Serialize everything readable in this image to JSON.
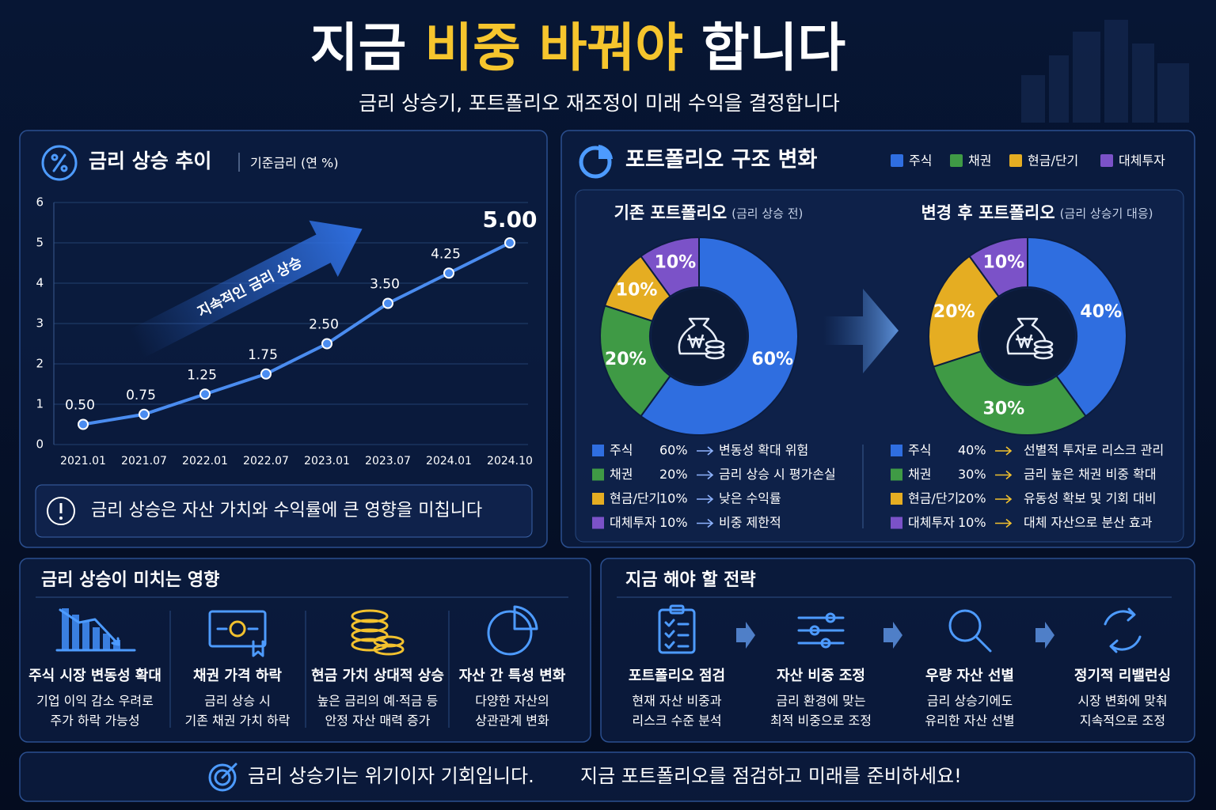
{
  "header": {
    "title_start": "지금",
    "title_highlight": "비중 바꿔야",
    "title_end": "합니다",
    "subtitle": "금리 상승기, 포트폴리오 재조정이 미래 수익을 결정합니다"
  },
  "rate_panel": {
    "title": "금리 상승 추이",
    "subtitle": "기준금리 (연 %)",
    "note": "금리 상승은 자산 가치와 수익률에 큰 영향을 미칩니다"
  },
  "portfolio_panel": {
    "title": "포트폴리오 구조 변화"
  },
  "chart_data": [
    {
      "type": "line",
      "categories": [
        "2021.01",
        "2021.07",
        "2022.01",
        "2022.07",
        "2023.01",
        "2023.07",
        "2024.01",
        "2024.10"
      ],
      "values": [
        0.5,
        0.75,
        1.25,
        1.75,
        2.5,
        3.5,
        4.25,
        5.0
      ],
      "value_labels": [
        "0.50",
        "0.75",
        "1.25",
        "1.75",
        "2.50",
        "3.50",
        "4.25",
        "5.00"
      ],
      "color": "#4a8cf0",
      "ylim": [
        0,
        6
      ],
      "yticks": [
        0,
        1,
        2,
        3,
        4,
        5,
        6
      ],
      "grid": true,
      "annotation": "지속적인 금리 상승"
    },
    {
      "type": "pie",
      "title": "기존 포트폴리오",
      "subtitle": "(금리 상승 전)",
      "categories": [
        "주식",
        "채권",
        "현금/단기",
        "대체투자"
      ],
      "values": [
        60,
        20,
        10,
        10
      ],
      "value_labels": [
        "60%",
        "20%",
        "10%",
        "10%"
      ],
      "colors": [
        "#2f6ee0",
        "#3f9a45",
        "#e5ad22",
        "#7b52c8"
      ],
      "legend_notes": [
        "변동성 확대 위험",
        "금리 상승 시 평가손실",
        "낮은 수익률",
        "비중 제한적"
      ]
    },
    {
      "type": "pie",
      "title": "변경 후 포트폴리오",
      "subtitle": "(금리 상승기 대응)",
      "categories": [
        "주식",
        "채권",
        "현금/단기",
        "대체투자"
      ],
      "values": [
        40,
        30,
        20,
        10
      ],
      "value_labels": [
        "40%",
        "30%",
        "20%",
        "10%"
      ],
      "colors": [
        "#2f6ee0",
        "#3f9a45",
        "#e5ad22",
        "#7b52c8"
      ],
      "legend_notes": [
        "선별적 투자로 리스크 관리",
        "금리 높은 채권 비중 확대",
        "유동성 확보 및 기회 대비",
        "대체 자산으로 분산 효과"
      ]
    }
  ],
  "impact_panel": {
    "title": "금리 상승이 미치는 영향",
    "items": [
      {
        "title": "주식 시장 변동성 확대",
        "lines": [
          "기업 이익 감소 우려로",
          "주가 하락 가능성"
        ]
      },
      {
        "title": "채권 가격 하락",
        "lines": [
          "금리 상승 시",
          "기존 채권 가치 하락"
        ]
      },
      {
        "title": "현금 가치 상대적 상승",
        "lines": [
          "높은 금리의 예·적금 등",
          "안정 자산 매력 증가"
        ]
      },
      {
        "title": "자산 간 특성 변화",
        "lines": [
          "다양한 자산의",
          "상관관계 변화"
        ]
      }
    ]
  },
  "strategy_panel": {
    "title": "지금 해야 할 전략",
    "items": [
      {
        "title": "포트폴리오 점검",
        "lines": [
          "현재 자산 비중과",
          "리스크 수준 분석"
        ]
      },
      {
        "title": "자산 비중 조정",
        "lines": [
          "금리 환경에 맞는",
          "최적 비중으로 조정"
        ]
      },
      {
        "title": "우량 자산 선별",
        "lines": [
          "금리 상승기에도",
          "유리한 자산 선별"
        ]
      },
      {
        "title": "정기적 리밸런싱",
        "lines": [
          "시장 변화에 맞춰",
          "지속적으로 조정"
        ]
      }
    ]
  },
  "footer": {
    "message": "금리 상승기는 위기이자 기회입니다.",
    "call_to_action": "지금 포트폴리오를 점검하고 미래를 준비하세요!"
  }
}
